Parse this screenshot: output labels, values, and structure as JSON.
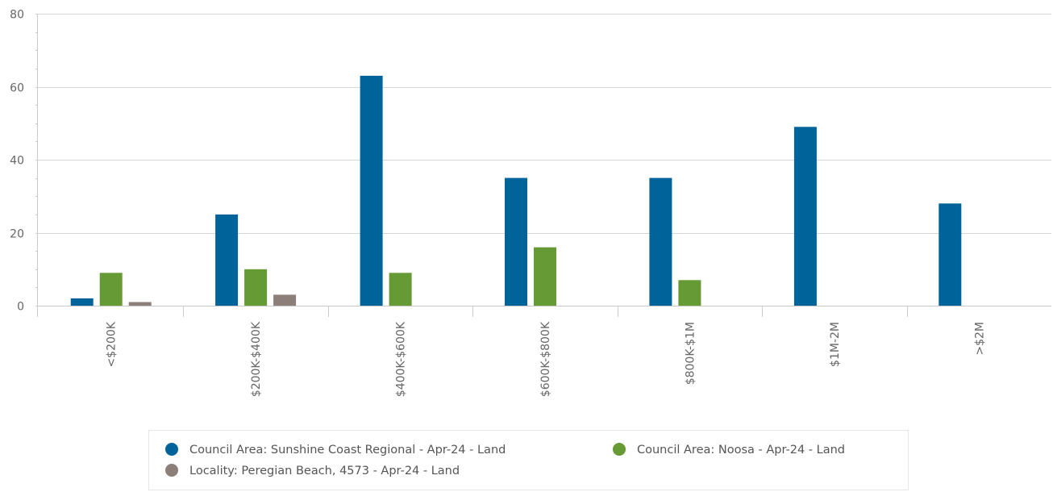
{
  "chart_data": {
    "type": "bar",
    "title": "",
    "xlabel": "",
    "ylabel": "",
    "ylim": [
      0,
      80
    ],
    "yticks": [
      0,
      20,
      40,
      60,
      80
    ],
    "grid": true,
    "legend_position": "bottom",
    "categories": [
      "<$200K",
      "$200K-$400K",
      "$400K-$600K",
      "$600K-$800K",
      "$800K-$1M",
      "$1M-2M",
      ">$2M"
    ],
    "series": [
      {
        "name": "Council Area: Sunshine Coast Regional - Apr-24 - Land",
        "color": "#00639a",
        "values": [
          2,
          25,
          63,
          35,
          35,
          49,
          28
        ]
      },
      {
        "name": "Council Area: Noosa - Apr-24 - Land",
        "color": "#659a34",
        "values": [
          9,
          10,
          9,
          16,
          7,
          0,
          0
        ]
      },
      {
        "name": "Locality: Peregian Beach, 4573 - Apr-24 - Land",
        "color": "#8c7e78",
        "values": [
          1,
          3,
          0,
          0,
          0,
          0,
          0
        ]
      }
    ]
  }
}
